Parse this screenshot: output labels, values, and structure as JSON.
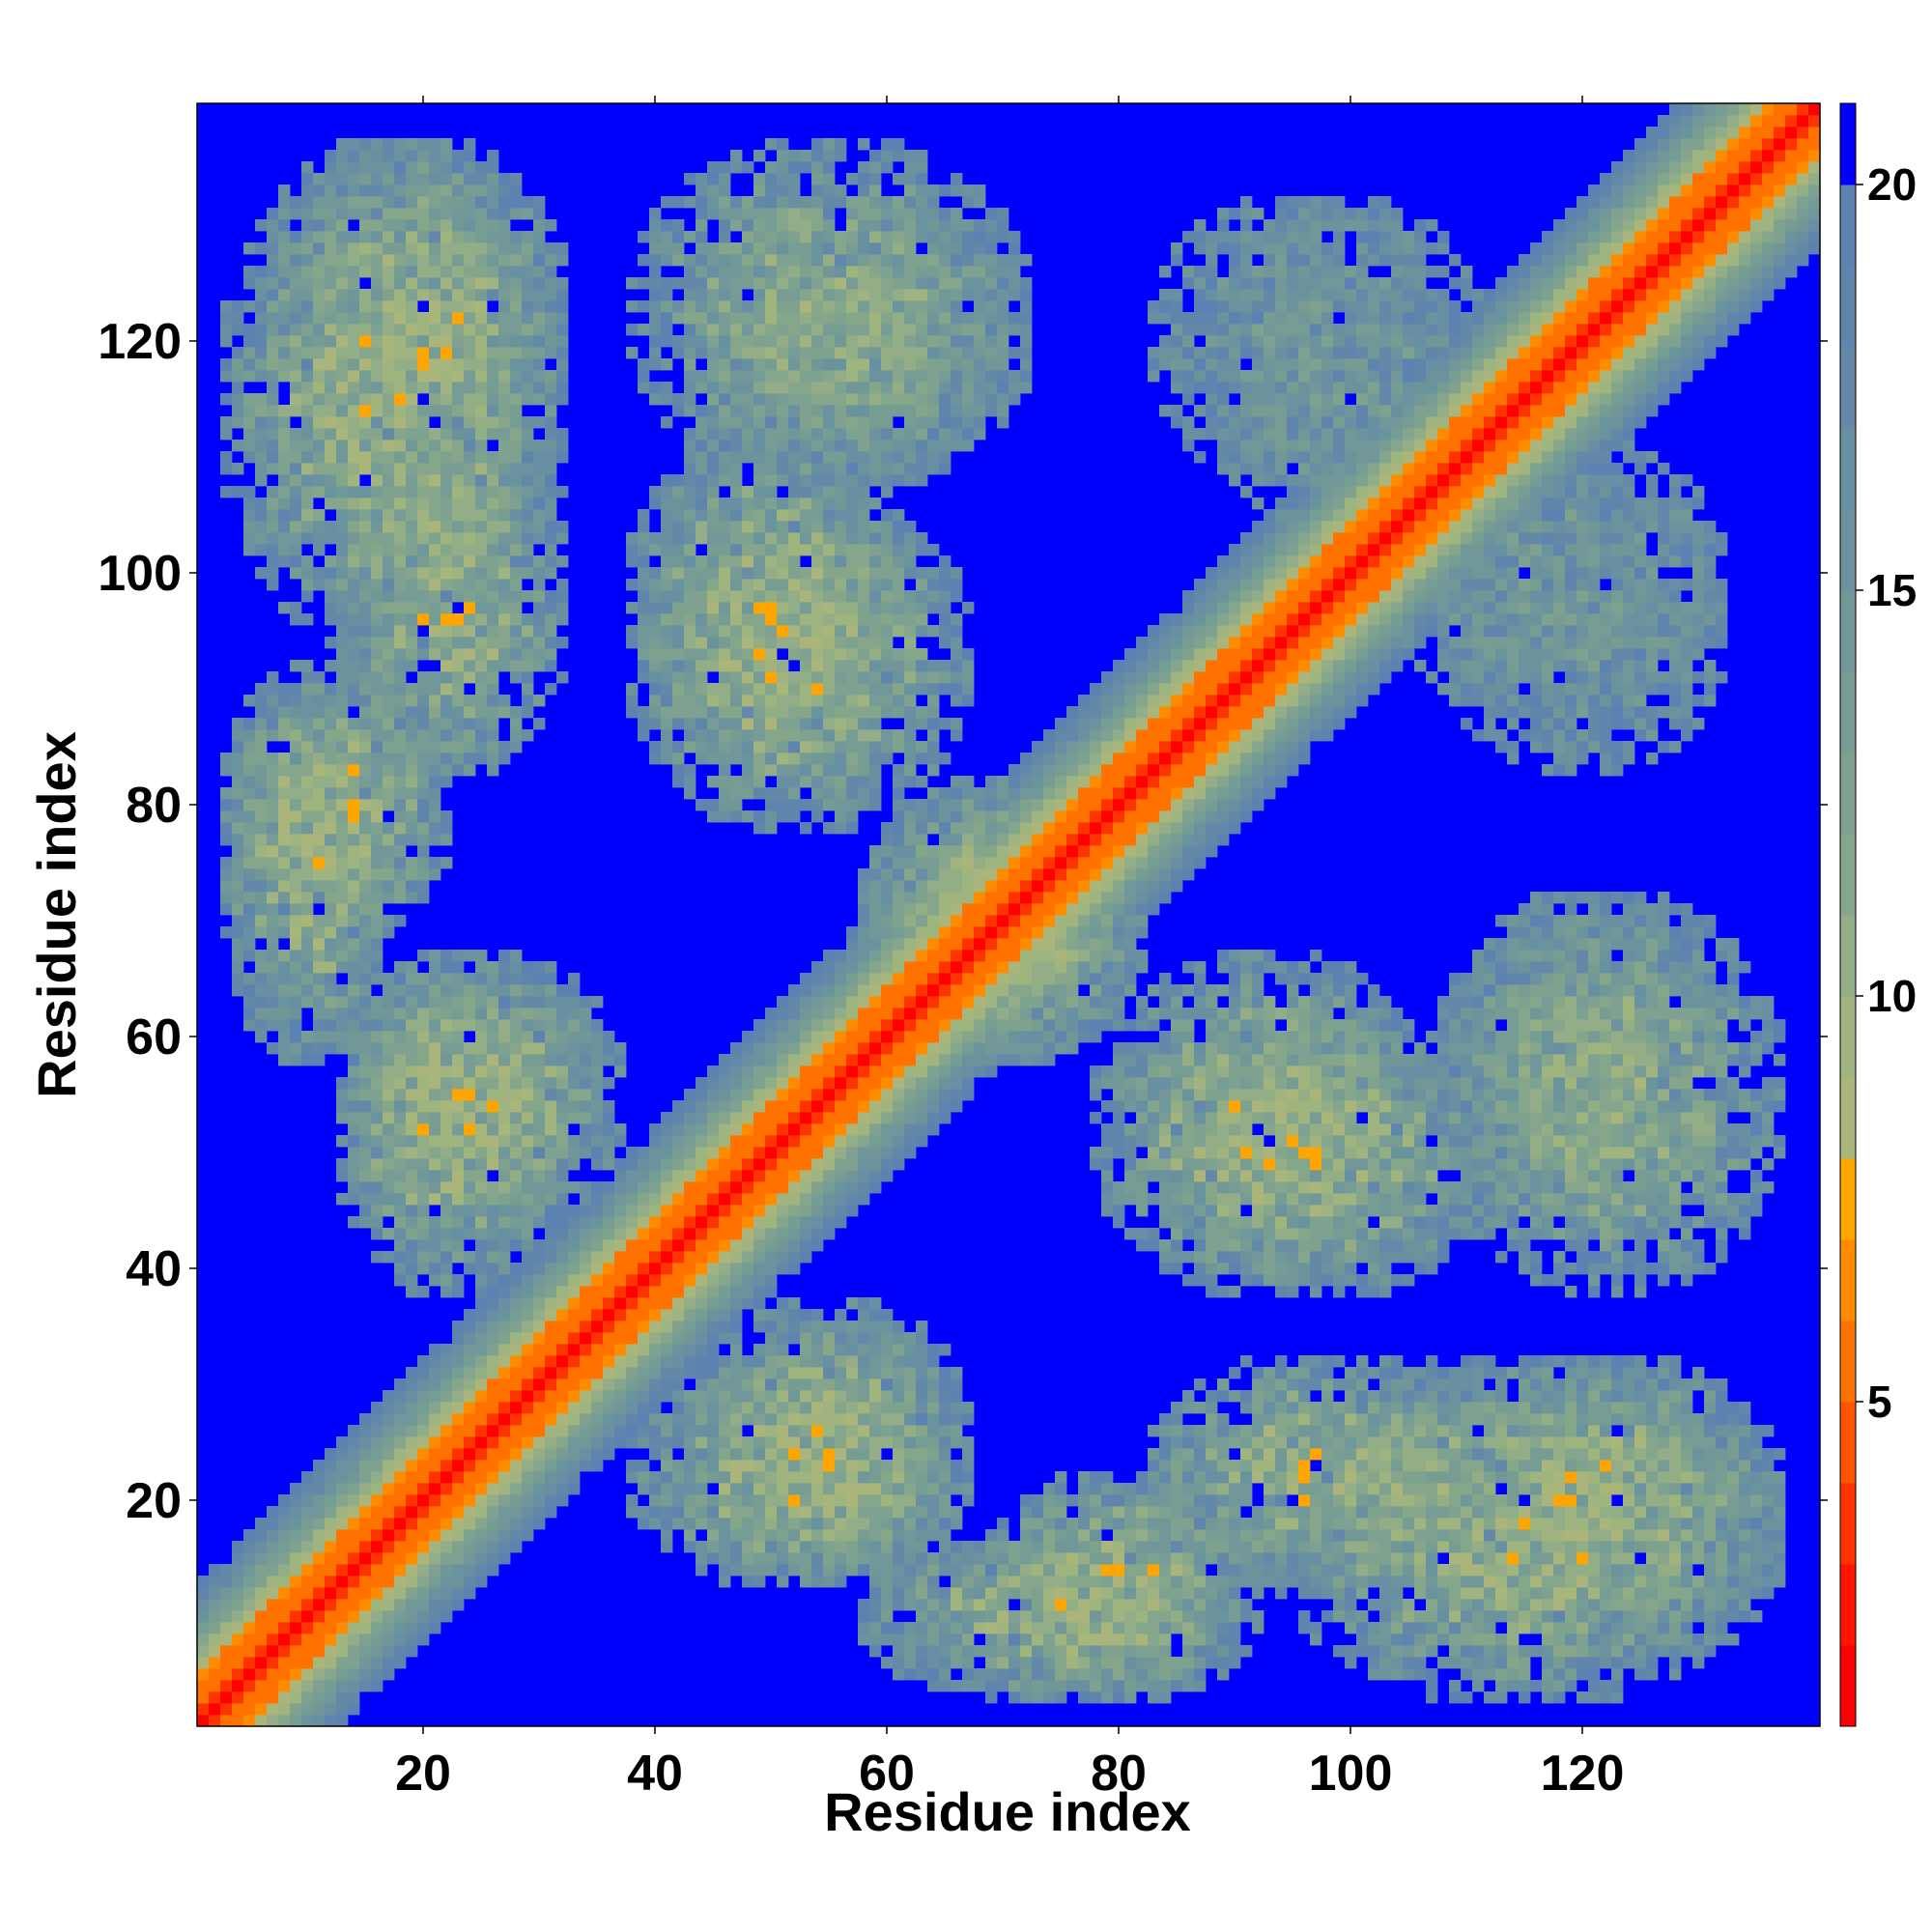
{
  "chart_data": {
    "type": "heatmap",
    "title": "",
    "xlabel": "Residue index",
    "ylabel": "Residue index",
    "x_range": [
      1,
      140
    ],
    "y_range": [
      1,
      140
    ],
    "x_ticks": [
      20,
      40,
      60,
      80,
      100,
      120
    ],
    "y_ticks": [
      20,
      40,
      60,
      80,
      100,
      120
    ],
    "x_tick_labels": [
      "20",
      "40",
      "60",
      "80",
      "100",
      "120"
    ],
    "y_tick_labels": [
      "20",
      "40",
      "60",
      "80",
      "100",
      "120"
    ],
    "colorbar": {
      "range": [
        0,
        21
      ],
      "ticks": [
        5,
        10,
        15,
        20
      ],
      "tick_labels": [
        "5",
        "10",
        "15",
        "20"
      ],
      "levels": [
        {
          "max": 2,
          "color": "#ff0000"
        },
        {
          "max": 3,
          "color": "#ff1400"
        },
        {
          "max": 4,
          "color": "#ff3300"
        },
        {
          "max": 5,
          "color": "#ff5500"
        },
        {
          "max": 6,
          "color": "#ff7200"
        },
        {
          "max": 7,
          "color": "#ff8c00"
        },
        {
          "max": 8,
          "color": "#ffa500"
        },
        {
          "max": 9,
          "color": "#a9b57a"
        },
        {
          "max": 10,
          "color": "#9fb47e"
        },
        {
          "max": 11,
          "color": "#93ad86"
        },
        {
          "max": 12,
          "color": "#86a68c"
        },
        {
          "max": 13,
          "color": "#7ea28f"
        },
        {
          "max": 14,
          "color": "#779c94"
        },
        {
          "max": 15,
          "color": "#719799"
        },
        {
          "max": 16,
          "color": "#6b939d"
        },
        {
          "max": 17,
          "color": "#688fa2"
        },
        {
          "max": 18,
          "color": "#6489a8"
        },
        {
          "max": 19,
          "color": "#5f85ac"
        },
        {
          "max": 20,
          "color": "#5b82b0"
        },
        {
          "max": 21,
          "color": "#0000ff"
        }
      ]
    },
    "description_of_pattern": {
      "diagonal_distance_per_offset": [
        0.0,
        3.8,
        5.5,
        5.3,
        6.3,
        8.6,
        10.0,
        12.0,
        13.5,
        15.0,
        16.5,
        18.0,
        19.5
      ],
      "off_diagonal_contact_blobs": [
        {
          "x": [
            10,
            30
          ],
          "y": [
            110,
            135
          ],
          "min": 6,
          "max": 19
        },
        {
          "x": [
            15,
            30
          ],
          "y": [
            85,
            110
          ],
          "min": 6,
          "max": 19
        },
        {
          "x": [
            5,
            15
          ],
          "y": [
            60,
            90
          ],
          "min": 6,
          "max": 19
        },
        {
          "x": [
            15,
            35
          ],
          "y": [
            45,
            65
          ],
          "min": 6,
          "max": 19
        },
        {
          "x": [
            40,
            70
          ],
          "y": [
            110,
            135
          ],
          "min": 8,
          "max": 19
        },
        {
          "x": [
            40,
            60
          ],
          "y": [
            85,
            110
          ],
          "min": 6,
          "max": 19
        },
        {
          "x": [
            60,
            80
          ],
          "y": [
            60,
            80
          ],
          "min": 6,
          "max": 19
        },
        {
          "x": [
            90,
            110
          ],
          "y": [
            105,
            130
          ],
          "min": 14,
          "max": 19
        },
        {
          "x": [
            110,
            130
          ],
          "y": [
            85,
            105
          ],
          "min": 14,
          "max": 19
        },
        {
          "x": [
            80,
            105
          ],
          "y": [
            40,
            65
          ],
          "min": 6,
          "max": 19
        },
        {
          "x": [
            110,
            130
          ],
          "y": [
            45,
            70
          ],
          "min": 10,
          "max": 19
        },
        {
          "x": [
            40,
            65
          ],
          "y": [
            15,
            30
          ],
          "min": 6,
          "max": 19
        },
        {
          "x": [
            70,
            90
          ],
          "y": [
            5,
            20
          ],
          "min": 6,
          "max": 19
        },
        {
          "x": [
            95,
            135
          ],
          "y": [
            5,
            30
          ],
          "min": 6,
          "max": 19
        }
      ]
    }
  }
}
